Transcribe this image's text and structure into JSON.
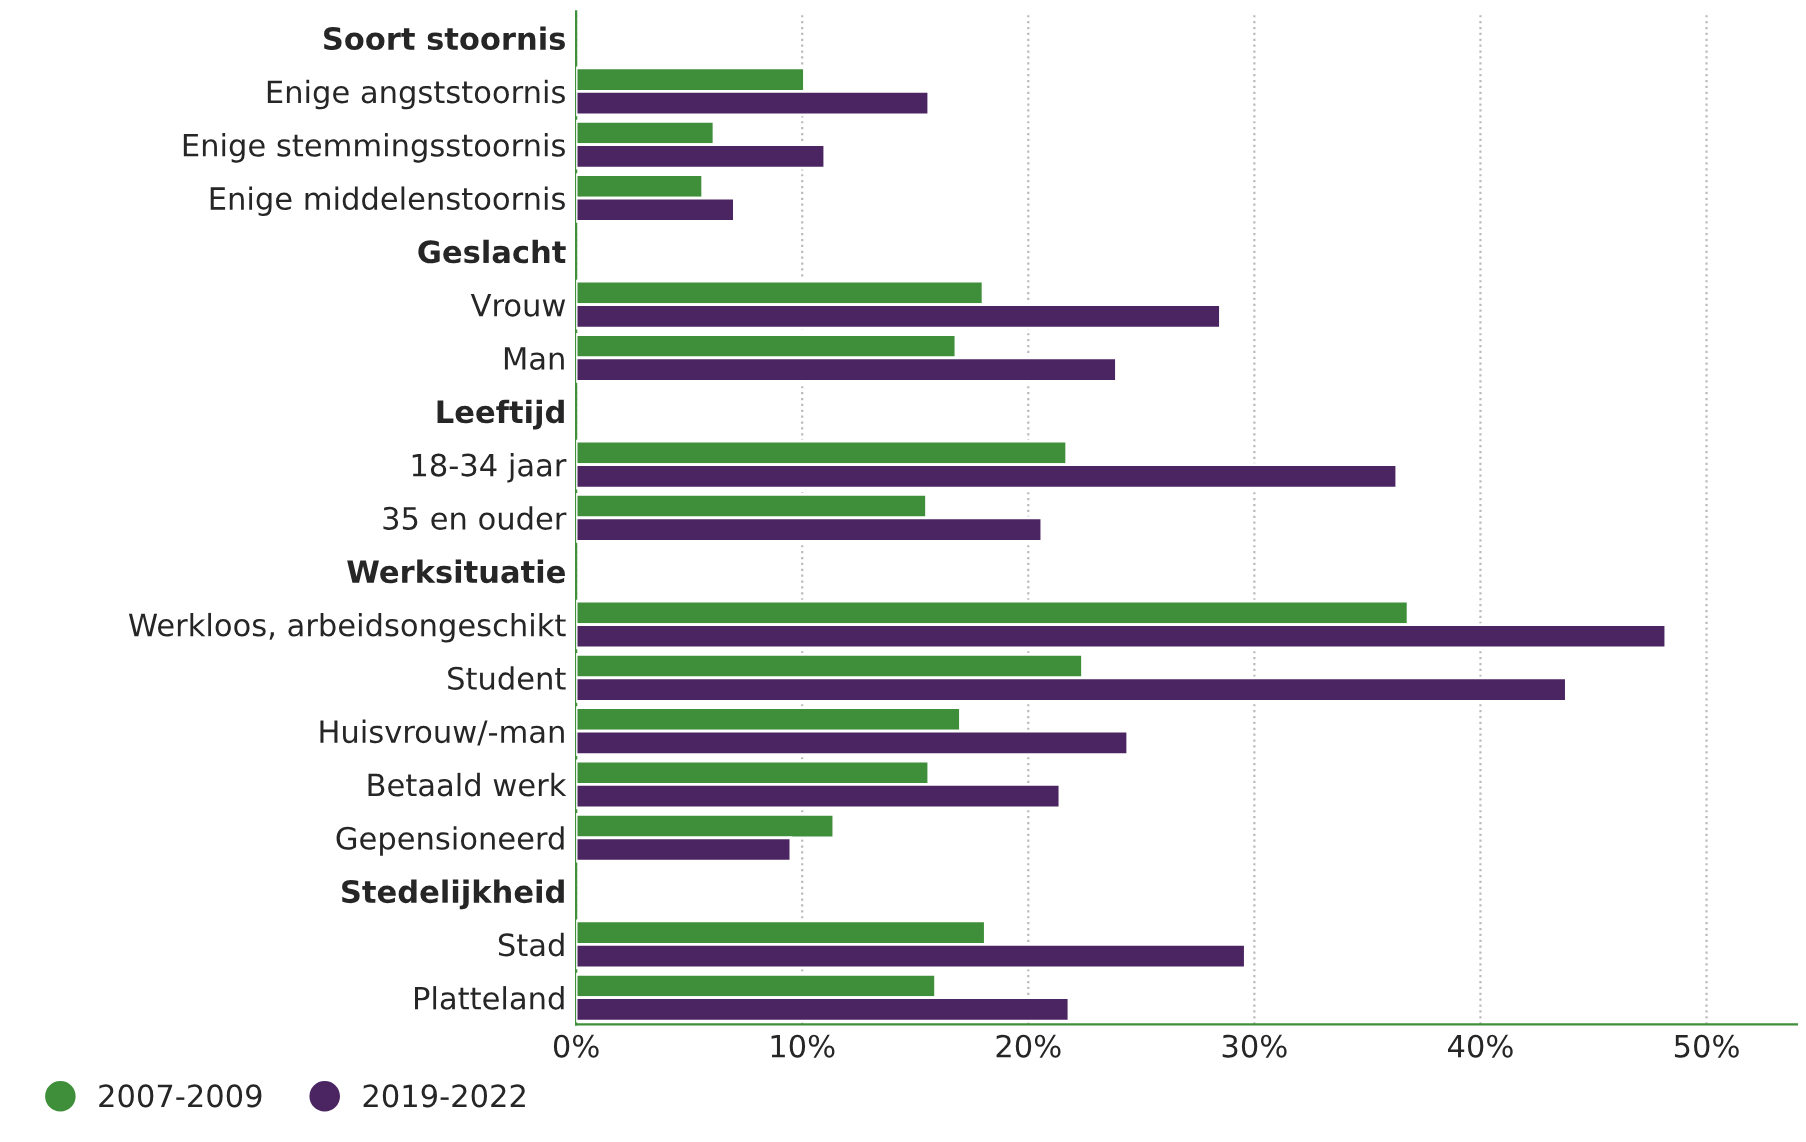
{
  "chart_data": {
    "type": "bar",
    "orientation": "horizontal",
    "categories": [
      "Soort stoornis",
      "Enige angststoornis",
      "Enige stemmingsstoornis",
      "Enige middelenstoornis",
      "Geslacht",
      "Vrouw",
      "Man",
      "Leeftijd",
      "18-34 jaar",
      "35 en ouder",
      "Werksituatie",
      "Werkloos, arbeidsongeschikt",
      "Student",
      "Huisvrouw/-man",
      "Betaald werk",
      "Gepensioneerd",
      "Stedelijkheid",
      "Stad",
      "Platteland"
    ],
    "series": [
      {
        "name": "2007-2009",
        "color": "#3f8f3a",
        "values": [
          null,
          10.1,
          6.1,
          5.6,
          null,
          18.0,
          16.8,
          null,
          21.7,
          15.5,
          null,
          36.8,
          22.4,
          17.0,
          15.6,
          11.4,
          null,
          18.1,
          15.9
        ]
      },
      {
        "name": "2019-2022",
        "color": "#4b2462",
        "values": [
          null,
          15.6,
          11.0,
          7.0,
          null,
          28.5,
          23.9,
          null,
          36.3,
          20.6,
          null,
          48.2,
          43.8,
          24.4,
          21.4,
          9.5,
          null,
          29.6,
          21.8
        ]
      }
    ],
    "xlim": [
      0,
      54
    ],
    "xticks": [
      {
        "value": 0,
        "label": "0%"
      },
      {
        "value": 10,
        "label": "10%"
      },
      {
        "value": 20,
        "label": "20%"
      },
      {
        "value": 30,
        "label": "30%"
      },
      {
        "value": 40,
        "label": "40%"
      },
      {
        "value": 50,
        "label": "50%"
      }
    ],
    "grid": "x",
    "legend": "bottom left"
  }
}
